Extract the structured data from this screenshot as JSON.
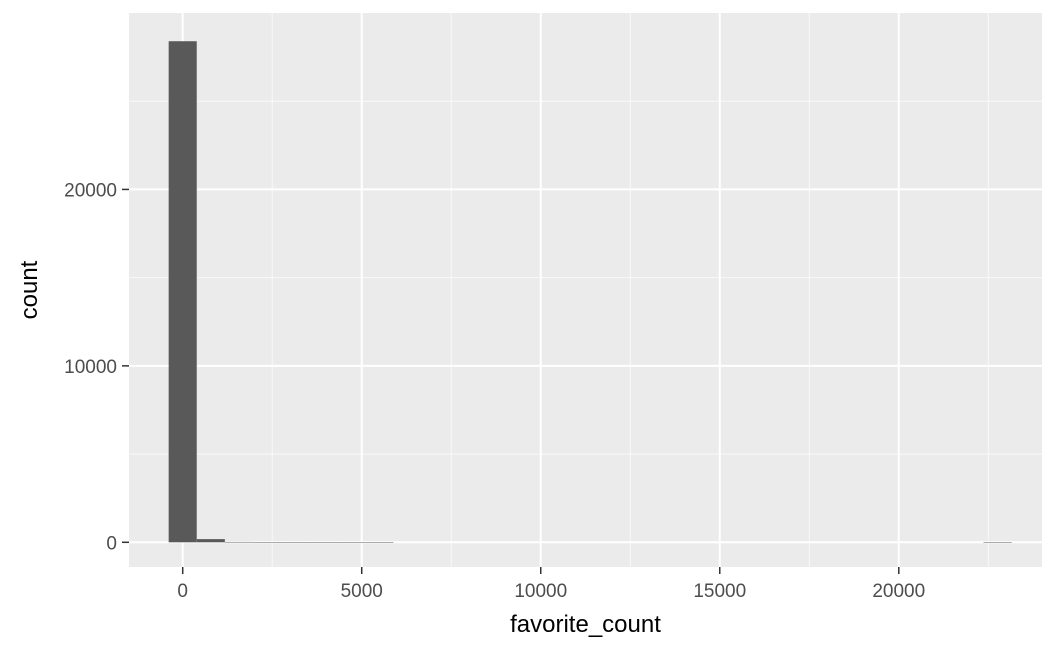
{
  "chart_data": {
    "type": "bar",
    "subtype": "histogram",
    "title": "",
    "xlabel": "favorite_count",
    "ylabel": "count",
    "bin_width": 785,
    "bins": [
      {
        "x_min": -392,
        "x_max": 392,
        "count": 28400
      },
      {
        "x_min": 392,
        "x_max": 1177,
        "count": 180
      },
      {
        "x_min": 1177,
        "x_max": 1962,
        "count": 20
      },
      {
        "x_min": 1962,
        "x_max": 2747,
        "count": 8
      },
      {
        "x_min": 2747,
        "x_max": 3532,
        "count": 4
      },
      {
        "x_min": 3532,
        "x_max": 4317,
        "count": 2
      },
      {
        "x_min": 4317,
        "x_max": 5102,
        "count": 1
      },
      {
        "x_min": 5102,
        "x_max": 5887,
        "count": 1
      },
      {
        "x_min": 22367,
        "x_max": 23152,
        "count": 1
      }
    ],
    "xlim": [
      -1500,
      24000
    ],
    "ylim": [
      -1400,
      30000
    ],
    "x_ticks": [
      0,
      5000,
      10000,
      15000,
      20000
    ],
    "x_tick_labels": [
      "0",
      "5000",
      "10000",
      "15000",
      "20000"
    ],
    "y_ticks": [
      0,
      10000,
      20000
    ],
    "y_tick_labels": [
      "0",
      "10000",
      "20000"
    ],
    "grid": true,
    "colors": {
      "panel": "#ebebeb",
      "grid_major": "#ffffff",
      "bar": "#595959"
    }
  }
}
